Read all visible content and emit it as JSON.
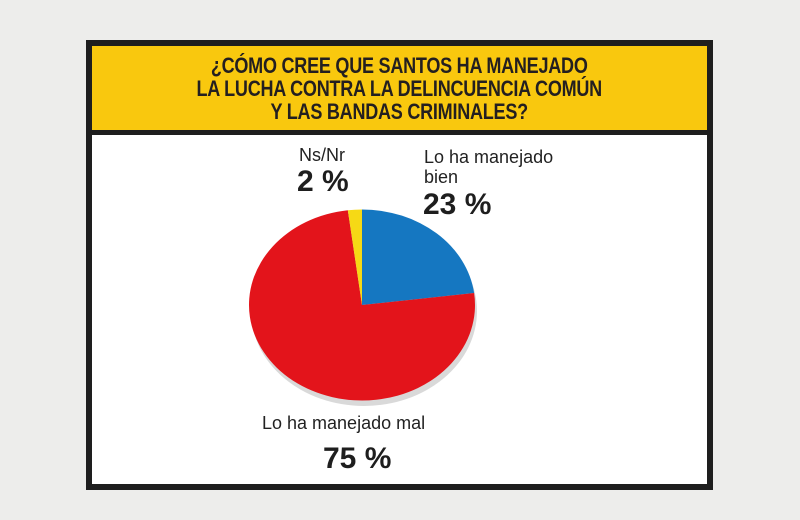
{
  "chart_data": {
    "type": "pie",
    "title": "¿CÓMO CREE QUE SANTOS HA MANEJADO\nLA LUCHA CONTRA LA DELINCUENCIA COMÚN\nY LAS BANDAS CRIMINALES?",
    "slices": [
      {
        "label": "Lo ha manejado bien",
        "value": 23,
        "value_label": "23 %",
        "color": "#1577c1"
      },
      {
        "label": "Lo ha manejado mal",
        "value": 75,
        "value_label": "75 %",
        "color": "#e3141b"
      },
      {
        "label": "Ns/Nr",
        "value": 2,
        "value_label": "2 %",
        "color": "#f6d915"
      }
    ],
    "start_angle": "top, clockwise"
  }
}
